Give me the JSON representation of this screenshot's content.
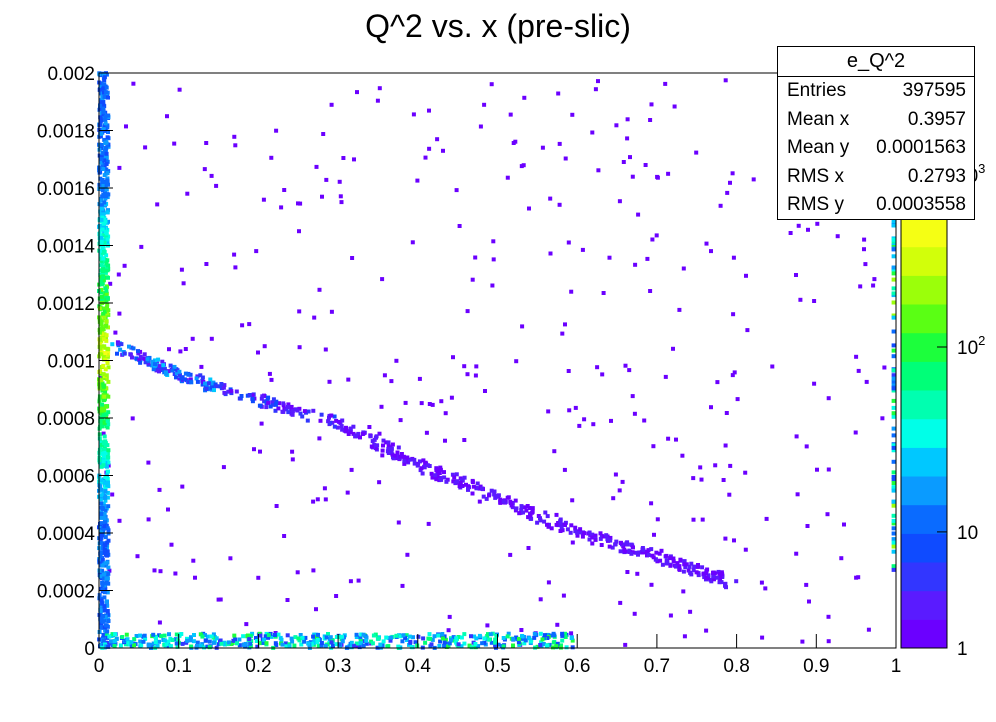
{
  "chart_data": {
    "type": "heatmap",
    "title": "Q^2 vs. x (pre-slic)",
    "xlabel": "",
    "ylabel": "",
    "xlim": [
      0,
      1
    ],
    "ylim": [
      0,
      0.002
    ],
    "x_ticks": [
      "0",
      "0.1",
      "0.2",
      "0.3",
      "0.4",
      "0.5",
      "0.6",
      "0.7",
      "0.8",
      "0.9",
      "1"
    ],
    "y_ticks": [
      "0",
      "0.0002",
      "0.0004",
      "0.0006",
      "0.0008",
      "0.001",
      "0.0012",
      "0.0014",
      "0.0016",
      "0.0018",
      "0.002"
    ],
    "z_scale": "log",
    "z_ticks": [
      "1",
      "10",
      "10^2",
      "10^3"
    ],
    "palette": [
      "#6b00ff",
      "#5a1bff",
      "#3236ff",
      "#0f4bff",
      "#0a6bff",
      "#0a9bff",
      "#00c8ff",
      "#00ffe8",
      "#00ffb0",
      "#00ff78",
      "#1cff3c",
      "#5aff14",
      "#9bff0a",
      "#d2ff0a",
      "#f5ff14"
    ],
    "features": [
      {
        "desc": "dense band near x=0",
        "x": [
          0.0,
          0.012
        ],
        "y": [
          0.0,
          0.002
        ],
        "density": "high"
      },
      {
        "desc": "main diagonal band",
        "points": [
          [
            0.02,
            0.00105
          ],
          [
            0.1,
            0.00095
          ],
          [
            0.2,
            0.00086
          ],
          [
            0.3,
            0.00078
          ],
          [
            0.4,
            0.00064
          ],
          [
            0.5,
            0.00052
          ],
          [
            0.6,
            0.0004
          ],
          [
            0.7,
            0.00032
          ],
          [
            0.8,
            0.00022
          ]
        ]
      },
      {
        "desc": "low-Q2 band",
        "x": [
          0.0,
          0.6
        ],
        "y": [
          0.0,
          5e-05
        ],
        "density": "high"
      },
      {
        "desc": "edge column at x=1",
        "x": [
          0.995,
          1.0
        ],
        "y": [
          0.00025,
          0.0015
        ]
      }
    ],
    "legend": {
      "title": "e_Q^2",
      "entries": [
        {
          "label": "Entries",
          "value": "397595"
        },
        {
          "label": "Mean x",
          "value": "0.3957"
        },
        {
          "label": "Mean y",
          "value": "0.0001563"
        },
        {
          "label": "RMS x",
          "value": "0.2793"
        },
        {
          "label": "RMS y",
          "value": "0.0003558"
        }
      ]
    }
  }
}
